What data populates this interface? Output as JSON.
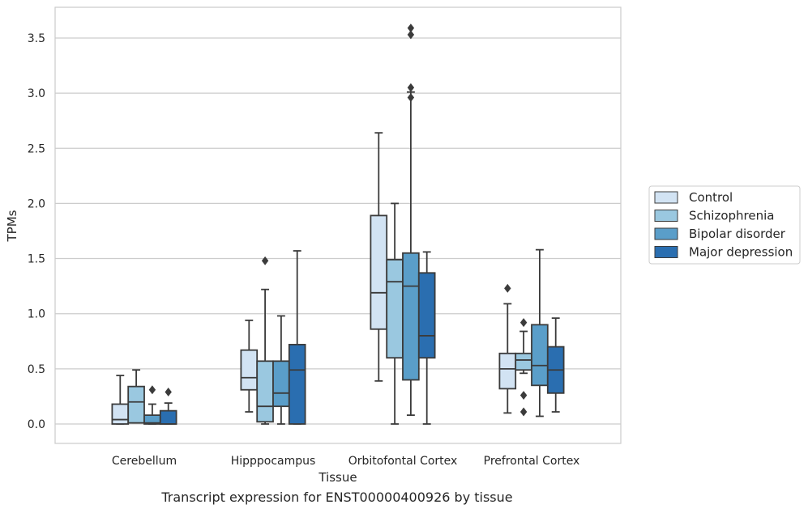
{
  "caption": "Transcript expression for ENST00000400926 by tissue",
  "chart_data": {
    "type": "box",
    "xlabel": "Tissue",
    "ylabel": "TPMs",
    "ylim": [
      -0.17,
      3.78
    ],
    "yticks": [
      0.0,
      0.5,
      1.0,
      1.5,
      2.0,
      2.5,
      3.0,
      3.5
    ],
    "ytick_labels": [
      "0.0",
      "0.5",
      "1.0",
      "1.5",
      "2.0",
      "2.5",
      "3.0",
      "3.5"
    ],
    "grid": "horizontal",
    "legend_position": "right",
    "categories": [
      "Cerebellum",
      "Hipppocampus",
      "Orbitofontal Cortex",
      "Prefrontal Cortex"
    ],
    "series": [
      {
        "name": "Control",
        "color": "#d2e3f3",
        "boxes": [
          {
            "whislo": 0.0,
            "q1": 0.0,
            "med": 0.04,
            "q3": 0.18,
            "whishi": 0.44,
            "fliers": []
          },
          {
            "whislo": 0.11,
            "q1": 0.31,
            "med": 0.42,
            "q3": 0.67,
            "whishi": 0.94,
            "fliers": []
          },
          {
            "whislo": 0.39,
            "q1": 0.86,
            "med": 1.19,
            "q3": 1.89,
            "whishi": 2.64,
            "fliers": []
          },
          {
            "whislo": 0.1,
            "q1": 0.32,
            "med": 0.5,
            "q3": 0.64,
            "whishi": 1.09,
            "fliers": [
              1.23
            ]
          }
        ]
      },
      {
        "name": "Schizophrenia",
        "color": "#9ac8e0",
        "boxes": [
          {
            "whislo": 0.01,
            "q1": 0.01,
            "med": 0.2,
            "q3": 0.34,
            "whishi": 0.49,
            "fliers": []
          },
          {
            "whislo": 0.0,
            "q1": 0.02,
            "med": 0.16,
            "q3": 0.57,
            "whishi": 1.22,
            "fliers": [
              1.48
            ]
          },
          {
            "whislo": 0.0,
            "q1": 0.6,
            "med": 1.29,
            "q3": 1.49,
            "whishi": 2.0,
            "fliers": []
          },
          {
            "whislo": 0.46,
            "q1": 0.49,
            "med": 0.58,
            "q3": 0.64,
            "whishi": 0.84,
            "fliers": [
              0.92,
              0.26,
              0.11
            ]
          }
        ]
      },
      {
        "name": "Bipolar disorder",
        "color": "#5a9ec9",
        "boxes": [
          {
            "whislo": 0.0,
            "q1": 0.0,
            "med": 0.01,
            "q3": 0.08,
            "whishi": 0.18,
            "fliers": [
              0.31
            ]
          },
          {
            "whislo": 0.0,
            "q1": 0.16,
            "med": 0.28,
            "q3": 0.57,
            "whishi": 0.98,
            "fliers": []
          },
          {
            "whislo": 0.08,
            "q1": 0.4,
            "med": 1.25,
            "q3": 1.55,
            "whishi": 3.01,
            "fliers": [
              3.59,
              3.53,
              3.05,
              2.96
            ]
          },
          {
            "whislo": 0.07,
            "q1": 0.35,
            "med": 0.53,
            "q3": 0.9,
            "whishi": 1.58,
            "fliers": []
          }
        ]
      },
      {
        "name": "Major depression",
        "color": "#2a6eb0",
        "boxes": [
          {
            "whislo": 0.0,
            "q1": 0.0,
            "med": 0.0,
            "q3": 0.12,
            "whishi": 0.19,
            "fliers": [
              0.29
            ]
          },
          {
            "whislo": 0.0,
            "q1": 0.0,
            "med": 0.49,
            "q3": 0.72,
            "whishi": 1.57,
            "fliers": []
          },
          {
            "whislo": 0.0,
            "q1": 0.6,
            "med": 0.8,
            "q3": 1.37,
            "whishi": 1.56,
            "fliers": []
          },
          {
            "whislo": 0.11,
            "q1": 0.28,
            "med": 0.49,
            "q3": 0.7,
            "whishi": 0.96,
            "fliers": []
          }
        ]
      }
    ]
  }
}
